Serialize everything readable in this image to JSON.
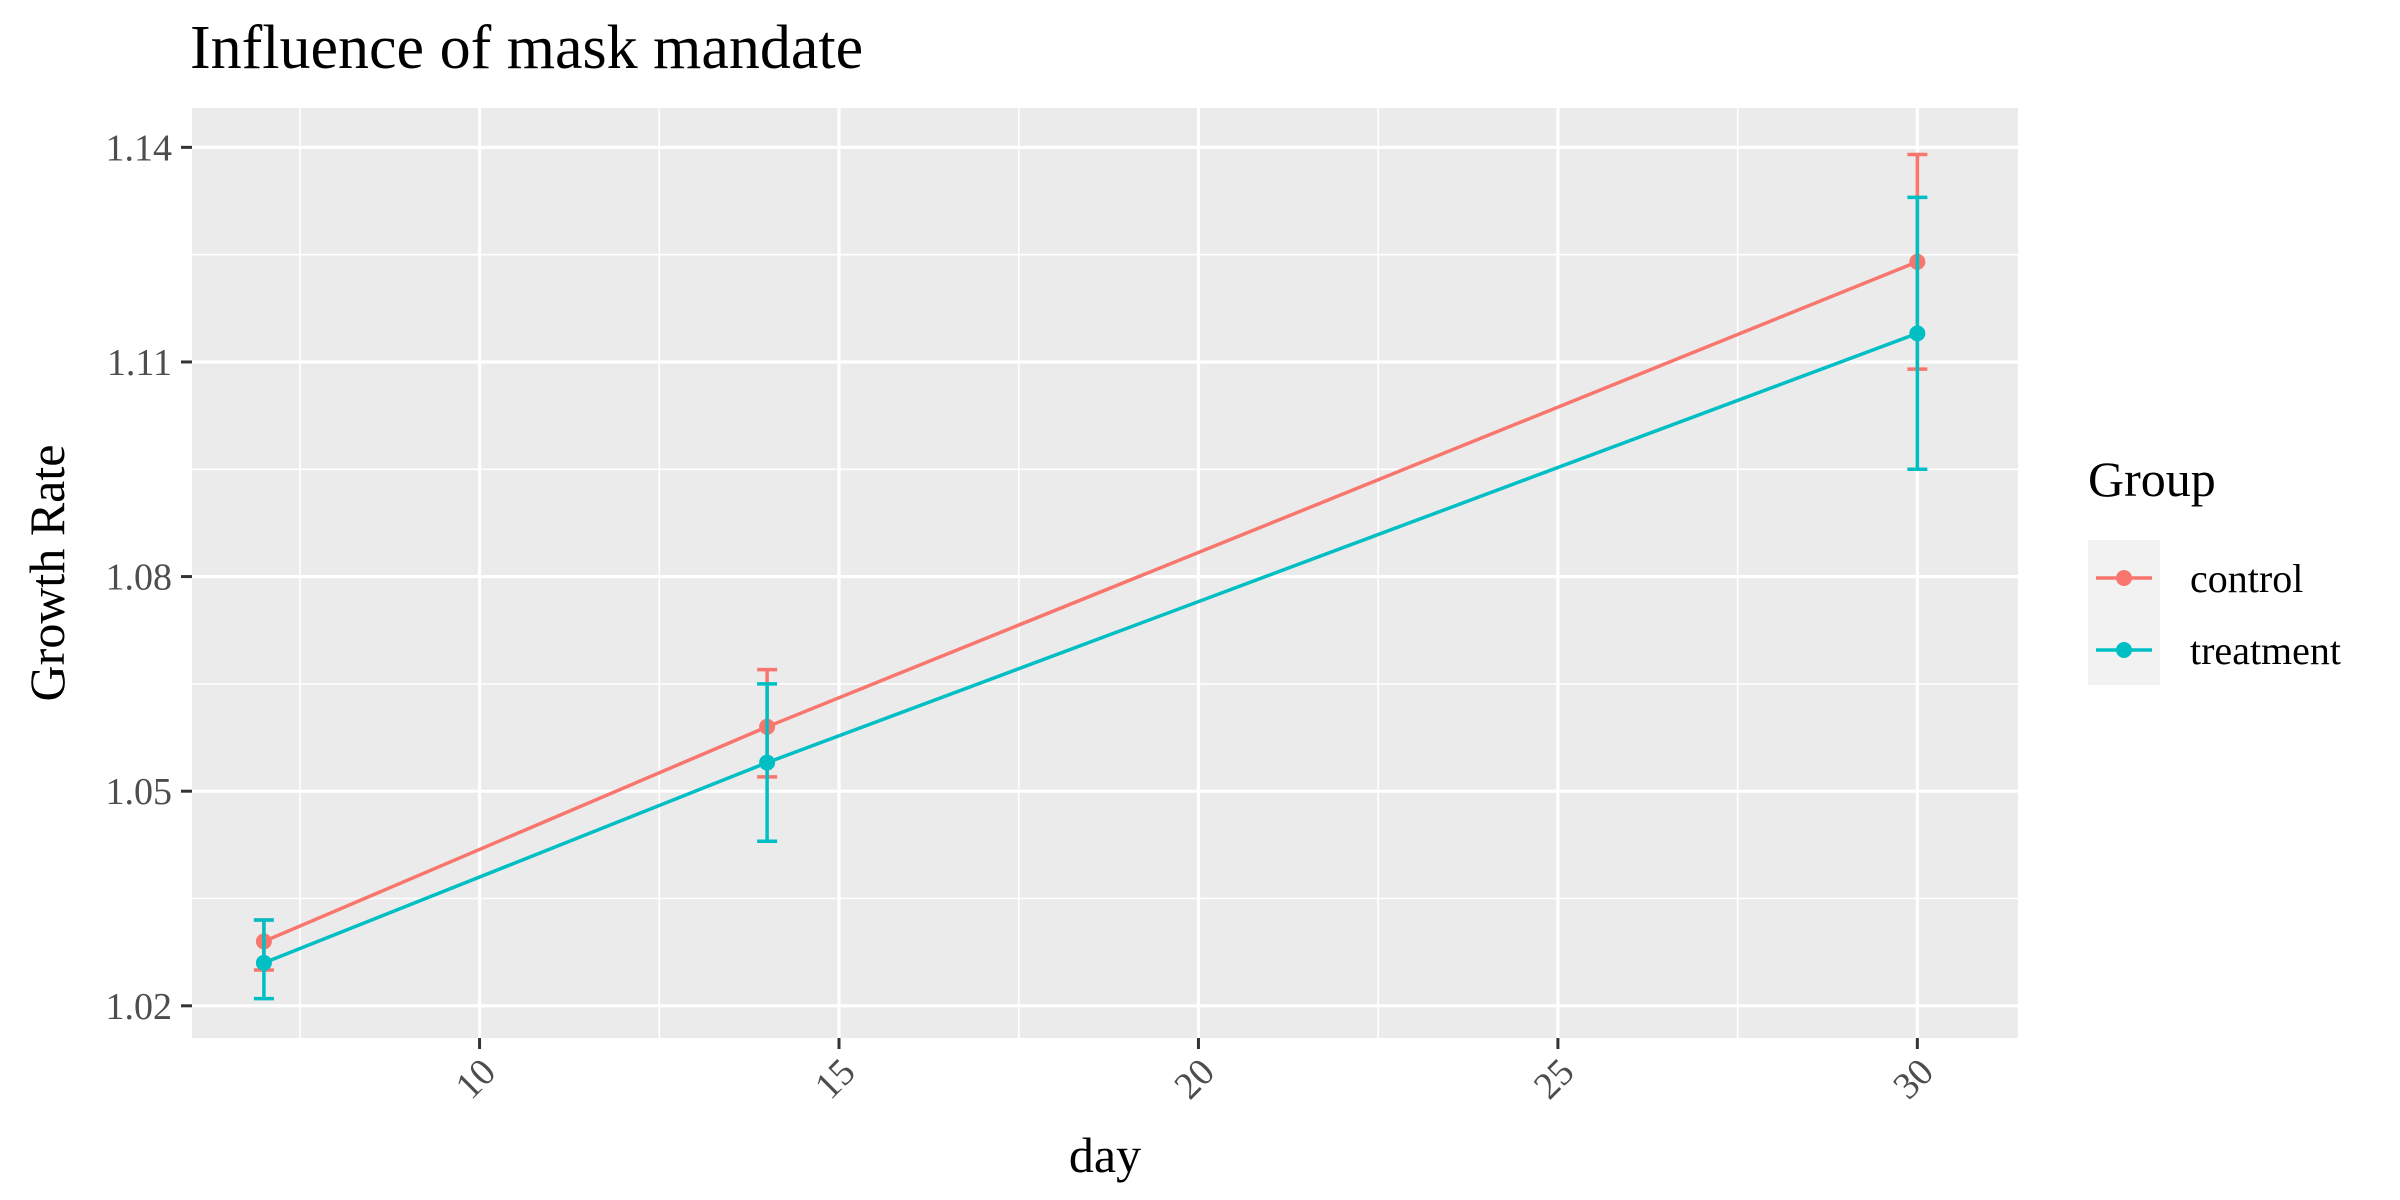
{
  "chart_data": {
    "type": "line",
    "title": "Influence of mask mandate",
    "xlabel": "day",
    "ylabel": "Growth Rate",
    "xlim": [
      6.0,
      31.4
    ],
    "ylim": [
      1.0155,
      1.1455
    ],
    "x_ticks": [
      10,
      15,
      20,
      25,
      30
    ],
    "y_ticks": [
      1.02,
      1.05,
      1.08,
      1.11,
      1.14
    ],
    "x_tick_labels": [
      "10",
      "15",
      "20",
      "25",
      "30"
    ],
    "y_tick_labels": [
      "1.02",
      "1.05",
      "1.08",
      "1.11",
      "1.14"
    ],
    "grid": true,
    "legend": {
      "title": "Group",
      "position": "right"
    },
    "series": [
      {
        "name": "control",
        "color": "#F8766D",
        "x": [
          7,
          14,
          30
        ],
        "y": [
          1.029,
          1.059,
          1.124
        ],
        "error_low": [
          1.025,
          1.052,
          1.109
        ],
        "error_high": [
          1.032,
          1.067,
          1.139
        ]
      },
      {
        "name": "treatment",
        "color": "#00BFC4",
        "x": [
          7,
          14,
          30
        ],
        "y": [
          1.026,
          1.054,
          1.114
        ],
        "error_low": [
          1.021,
          1.043,
          1.095
        ],
        "error_high": [
          1.032,
          1.065,
          1.133
        ]
      }
    ]
  }
}
